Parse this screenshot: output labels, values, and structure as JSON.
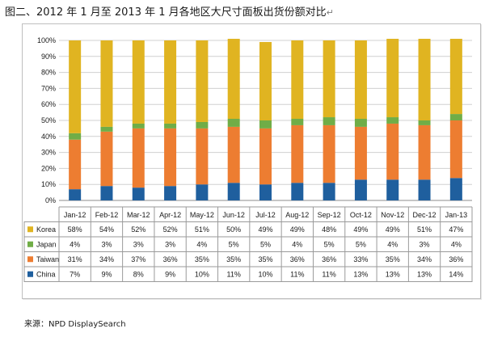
{
  "title": "图二、2012 年 1 月至 2013 年 1 月各地区大尺寸面板出货份额对比",
  "title_mark": "↵",
  "source": "来源：NPD DisplaySearch",
  "chart_data": {
    "type": "bar",
    "stacked": true,
    "percent": true,
    "categories": [
      "Jan-12",
      "Feb-12",
      "Mar-12",
      "Apr-12",
      "May-12",
      "Jun-12",
      "Jul-12",
      "Aug-12",
      "Sep-12",
      "Oct-12",
      "Nov-12",
      "Dec-12",
      "Jan-13"
    ],
    "yticks": [
      "0%",
      "10%",
      "20%",
      "30%",
      "40%",
      "50%",
      "60%",
      "70%",
      "80%",
      "90%",
      "100%"
    ],
    "ylim": [
      0,
      100
    ],
    "grid": true,
    "legend": "table-below",
    "series": [
      {
        "name": "China",
        "color": "#1f5f9e",
        "values": [
          7,
          9,
          8,
          9,
          10,
          11,
          10,
          11,
          11,
          13,
          13,
          13,
          14
        ]
      },
      {
        "name": "Taiwan",
        "color": "#ed7d31",
        "values": [
          31,
          34,
          37,
          36,
          35,
          35,
          35,
          36,
          36,
          33,
          35,
          34,
          36
        ]
      },
      {
        "name": "Japan",
        "color": "#70ad47",
        "values": [
          4,
          3,
          3,
          3,
          4,
          5,
          5,
          4,
          5,
          5,
          4,
          3,
          4
        ]
      },
      {
        "name": "Korea",
        "color": "#e0b421",
        "values": [
          58,
          54,
          52,
          52,
          51,
          50,
          49,
          49,
          48,
          49,
          49,
          51,
          47
        ]
      }
    ],
    "table_rows": [
      "Korea",
      "Japan",
      "Taiwan",
      "China"
    ]
  }
}
